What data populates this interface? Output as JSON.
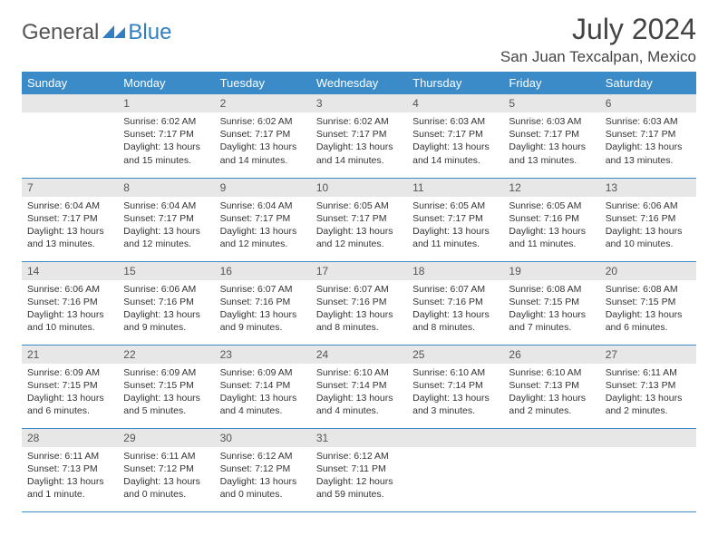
{
  "brand": {
    "part1": "General",
    "part2": "Blue"
  },
  "title": "July 2024",
  "location": "San Juan Texcalpan, Mexico",
  "colors": {
    "header_bg": "#3b8bc9",
    "header_text": "#ffffff",
    "daynum_bg": "#e7e7e7",
    "row_border": "#3b8bc9",
    "brand_blue": "#2f7fc2"
  },
  "weekdays": [
    "Sunday",
    "Monday",
    "Tuesday",
    "Wednesday",
    "Thursday",
    "Friday",
    "Saturday"
  ],
  "weeks": [
    [
      null,
      {
        "n": "1",
        "sr": "6:02 AM",
        "ss": "7:17 PM",
        "dl": "13 hours and 15 minutes."
      },
      {
        "n": "2",
        "sr": "6:02 AM",
        "ss": "7:17 PM",
        "dl": "13 hours and 14 minutes."
      },
      {
        "n": "3",
        "sr": "6:02 AM",
        "ss": "7:17 PM",
        "dl": "13 hours and 14 minutes."
      },
      {
        "n": "4",
        "sr": "6:03 AM",
        "ss": "7:17 PM",
        "dl": "13 hours and 14 minutes."
      },
      {
        "n": "5",
        "sr": "6:03 AM",
        "ss": "7:17 PM",
        "dl": "13 hours and 13 minutes."
      },
      {
        "n": "6",
        "sr": "6:03 AM",
        "ss": "7:17 PM",
        "dl": "13 hours and 13 minutes."
      }
    ],
    [
      {
        "n": "7",
        "sr": "6:04 AM",
        "ss": "7:17 PM",
        "dl": "13 hours and 13 minutes."
      },
      {
        "n": "8",
        "sr": "6:04 AM",
        "ss": "7:17 PM",
        "dl": "13 hours and 12 minutes."
      },
      {
        "n": "9",
        "sr": "6:04 AM",
        "ss": "7:17 PM",
        "dl": "13 hours and 12 minutes."
      },
      {
        "n": "10",
        "sr": "6:05 AM",
        "ss": "7:17 PM",
        "dl": "13 hours and 12 minutes."
      },
      {
        "n": "11",
        "sr": "6:05 AM",
        "ss": "7:17 PM",
        "dl": "13 hours and 11 minutes."
      },
      {
        "n": "12",
        "sr": "6:05 AM",
        "ss": "7:16 PM",
        "dl": "13 hours and 11 minutes."
      },
      {
        "n": "13",
        "sr": "6:06 AM",
        "ss": "7:16 PM",
        "dl": "13 hours and 10 minutes."
      }
    ],
    [
      {
        "n": "14",
        "sr": "6:06 AM",
        "ss": "7:16 PM",
        "dl": "13 hours and 10 minutes."
      },
      {
        "n": "15",
        "sr": "6:06 AM",
        "ss": "7:16 PM",
        "dl": "13 hours and 9 minutes."
      },
      {
        "n": "16",
        "sr": "6:07 AM",
        "ss": "7:16 PM",
        "dl": "13 hours and 9 minutes."
      },
      {
        "n": "17",
        "sr": "6:07 AM",
        "ss": "7:16 PM",
        "dl": "13 hours and 8 minutes."
      },
      {
        "n": "18",
        "sr": "6:07 AM",
        "ss": "7:16 PM",
        "dl": "13 hours and 8 minutes."
      },
      {
        "n": "19",
        "sr": "6:08 AM",
        "ss": "7:15 PM",
        "dl": "13 hours and 7 minutes."
      },
      {
        "n": "20",
        "sr": "6:08 AM",
        "ss": "7:15 PM",
        "dl": "13 hours and 6 minutes."
      }
    ],
    [
      {
        "n": "21",
        "sr": "6:09 AM",
        "ss": "7:15 PM",
        "dl": "13 hours and 6 minutes."
      },
      {
        "n": "22",
        "sr": "6:09 AM",
        "ss": "7:15 PM",
        "dl": "13 hours and 5 minutes."
      },
      {
        "n": "23",
        "sr": "6:09 AM",
        "ss": "7:14 PM",
        "dl": "13 hours and 4 minutes."
      },
      {
        "n": "24",
        "sr": "6:10 AM",
        "ss": "7:14 PM",
        "dl": "13 hours and 4 minutes."
      },
      {
        "n": "25",
        "sr": "6:10 AM",
        "ss": "7:14 PM",
        "dl": "13 hours and 3 minutes."
      },
      {
        "n": "26",
        "sr": "6:10 AM",
        "ss": "7:13 PM",
        "dl": "13 hours and 2 minutes."
      },
      {
        "n": "27",
        "sr": "6:11 AM",
        "ss": "7:13 PM",
        "dl": "13 hours and 2 minutes."
      }
    ],
    [
      {
        "n": "28",
        "sr": "6:11 AM",
        "ss": "7:13 PM",
        "dl": "13 hours and 1 minute."
      },
      {
        "n": "29",
        "sr": "6:11 AM",
        "ss": "7:12 PM",
        "dl": "13 hours and 0 minutes."
      },
      {
        "n": "30",
        "sr": "6:12 AM",
        "ss": "7:12 PM",
        "dl": "13 hours and 0 minutes."
      },
      {
        "n": "31",
        "sr": "6:12 AM",
        "ss": "7:11 PM",
        "dl": "12 hours and 59 minutes."
      },
      null,
      null,
      null
    ]
  ],
  "labels": {
    "sunrise": "Sunrise:",
    "sunset": "Sunset:",
    "daylight": "Daylight:"
  }
}
